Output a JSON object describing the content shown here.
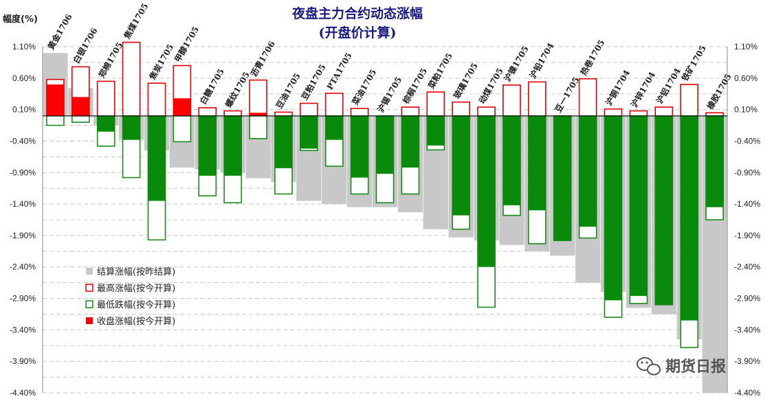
{
  "chart_data": {
    "type": "bar",
    "title_line1": "夜盘主力合约动态涨幅",
    "title_line2": "(开盘价计算)",
    "ylabel": "幅度(%)",
    "ylim": [
      -4.4,
      1.1
    ],
    "yticks": [
      "1.10%",
      "0.60%",
      "0.10%",
      "-0.40%",
      "-0.90%",
      "-1.40%",
      "-1.90%",
      "-2.40%",
      "-2.90%",
      "-3.40%",
      "-3.90%",
      "-4.40%"
    ],
    "ytick_values": [
      1.1,
      0.6,
      0.1,
      -0.4,
      -0.9,
      -1.4,
      -1.9,
      -2.4,
      -2.9,
      -3.4,
      -3.9,
      -4.4
    ],
    "grid": true,
    "legend_position": "bottom-left",
    "categories": [
      "黄金1706",
      "白银1706",
      "郑棉1705",
      "焦煤1705",
      "焦炭1705",
      "甲醇1705",
      "白糖1705",
      "螺纹1705",
      "沥青1706",
      "豆油1705",
      "豆粕1705",
      "PTA1705",
      "菜油1705",
      "沪锡1705",
      "棕榈1705",
      "菜粕1705",
      "玻璃1705",
      "动煤1705",
      "沪镍1705",
      "沪铅1704",
      "豆一1705",
      "热卷1705",
      "沪铜1704",
      "沪锌1704",
      "沪铝1704",
      "铁矿1705",
      "橡胶1705"
    ],
    "series": [
      {
        "name": "结算涨幅(按昨结算)",
        "color": "#c8c8c8",
        "values": [
          1.0,
          0.44,
          -0.15,
          -0.38,
          -0.55,
          -0.82,
          -0.85,
          -0.9,
          -0.99,
          -1.05,
          -1.35,
          -1.4,
          -1.45,
          -1.45,
          -1.53,
          -1.8,
          -1.93,
          -1.98,
          -2.05,
          -2.15,
          -2.22,
          -2.65,
          -2.8,
          -3.05,
          -3.15,
          -3.55,
          -4.4
        ]
      },
      {
        "name": "最高涨幅(按今开算)",
        "color": "#e00000",
        "values": [
          0.58,
          0.78,
          0.55,
          1.17,
          0.52,
          0.8,
          0.13,
          0.08,
          0.57,
          0.06,
          0.2,
          0.36,
          0.12,
          0.0,
          0.14,
          0.38,
          0.22,
          0.14,
          0.49,
          0.54,
          0.0,
          0.59,
          0.11,
          0.08,
          0.14,
          0.5,
          0.05
        ]
      },
      {
        "name": "最低跌幅(按今开算)",
        "color": "#1a8a1a",
        "values": [
          -0.15,
          -0.1,
          -0.48,
          -0.98,
          -1.97,
          -0.41,
          -1.27,
          -1.38,
          -0.36,
          -1.24,
          -0.55,
          -0.8,
          -1.24,
          -1.38,
          -1.24,
          -0.54,
          -1.8,
          -3.04,
          -1.58,
          -2.03,
          -1.98,
          -1.94,
          -3.2,
          -2.98,
          -3.0,
          -3.68,
          -1.65
        ]
      },
      {
        "name": "收盘涨幅(按今开算)",
        "color": "#ff0000",
        "values": [
          0.5,
          0.3,
          -0.25,
          -0.38,
          -1.35,
          0.28,
          -0.95,
          -0.95,
          0.05,
          -0.83,
          -0.52,
          -0.38,
          -0.98,
          -0.92,
          -0.82,
          -0.47,
          -1.58,
          -2.4,
          -1.42,
          -1.5,
          -1.98,
          -1.76,
          -2.93,
          -2.86,
          -3.0,
          -3.25,
          -1.45
        ]
      }
    ]
  },
  "watermark": "期货日报"
}
